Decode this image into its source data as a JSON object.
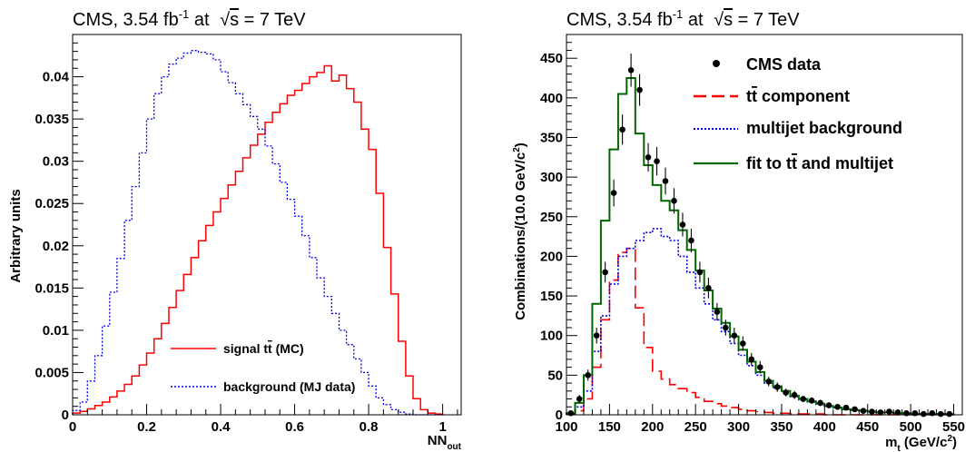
{
  "chart_data": [
    {
      "type": "line",
      "title": "CMS, 3.54 fb^-1 at √s = 7 TeV",
      "title_parts": {
        "pre": "CMS, 3.54 fb",
        "sup": "-1",
        "mid": " at ",
        "sqrt": "s",
        "post": " = 7 TeV"
      },
      "xlabel": "NN_out",
      "xlabel_parts": {
        "main": "NN",
        "sub": "out"
      },
      "ylabel": "Arbitrary units",
      "xlim": [
        0,
        1.05
      ],
      "ylim": [
        0,
        0.045
      ],
      "xticks": [
        "0",
        "0.2",
        "0.4",
        "0.6",
        "0.8",
        "1"
      ],
      "xtick_values": [
        0,
        0.2,
        0.4,
        0.6,
        0.8,
        1
      ],
      "yticks": [
        "0",
        "0.005",
        "0.01",
        "0.015",
        "0.02",
        "0.025",
        "0.03",
        "0.035",
        "0.04"
      ],
      "ytick_values": [
        0,
        0.005,
        0.01,
        0.015,
        0.02,
        0.025,
        0.03,
        0.035,
        0.04
      ],
      "bin_width": 0.02,
      "bins_start": 0,
      "legend_position": "bottom-center",
      "series": [
        {
          "name": "signal tt̄ (MC)",
          "label_parts": {
            "pre": "signal t",
            "bar": "t",
            "post": " (MC)"
          },
          "color": "#ff0000",
          "style": "solid",
          "values": [
            0.0002,
            0.0004,
            0.0007,
            0.0011,
            0.0015,
            0.0021,
            0.0028,
            0.0036,
            0.0046,
            0.0059,
            0.0073,
            0.009,
            0.0108,
            0.0127,
            0.0147,
            0.0166,
            0.0186,
            0.0206,
            0.0224,
            0.024,
            0.0256,
            0.0272,
            0.0288,
            0.0304,
            0.0319,
            0.0332,
            0.0346,
            0.0358,
            0.0368,
            0.0378,
            0.0384,
            0.0392,
            0.04,
            0.0405,
            0.0413,
            0.0395,
            0.0402,
            0.0386,
            0.037,
            0.0338,
            0.0314,
            0.0262,
            0.0198,
            0.0143,
            0.0087,
            0.0046,
            0.0019,
            0.0006,
            0.0002,
            0.0001
          ]
        },
        {
          "name": "background (MJ data)",
          "label_parts": {
            "pre": "background (MJ data)"
          },
          "color": "#0000ee",
          "style": "dotted",
          "values": [
            0.0005,
            0.0015,
            0.004,
            0.007,
            0.0105,
            0.0145,
            0.0185,
            0.023,
            0.027,
            0.031,
            0.035,
            0.038,
            0.04,
            0.0415,
            0.0422,
            0.0428,
            0.0431,
            0.0429,
            0.0427,
            0.042,
            0.0406,
            0.0393,
            0.038,
            0.0367,
            0.0353,
            0.0338,
            0.0318,
            0.0297,
            0.0275,
            0.0255,
            0.0235,
            0.0212,
            0.0186,
            0.0162,
            0.014,
            0.012,
            0.01,
            0.0083,
            0.0066,
            0.005,
            0.0034,
            0.002,
            0.0012,
            0.0006,
            0.0003,
            0.0001,
            0,
            0,
            0,
            0
          ]
        }
      ]
    },
    {
      "type": "line",
      "title": "CMS, 3.54 fb^-1 at √s = 7 TeV",
      "title_parts": {
        "pre": "CMS, 3.54 fb",
        "sup": "-1",
        "mid": " at ",
        "sqrt": "s",
        "post": " = 7 TeV"
      },
      "xlabel": "m_t (GeV/c^2)",
      "xlabel_parts": {
        "main": "m",
        "sub": "t",
        "mid": " (GeV/c",
        "sup": "2",
        "post": ")"
      },
      "ylabel": "Combinations/(10.0 GeV/c^2)",
      "ylabel_parts": {
        "pre": "Combinations/(10.0 GeV/c",
        "sup": "2",
        "post": ")"
      },
      "xlim": [
        100,
        560
      ],
      "ylim": [
        0,
        480
      ],
      "xticks": [
        "100",
        "150",
        "200",
        "250",
        "300",
        "350",
        "400",
        "450",
        "500",
        "550"
      ],
      "xtick_values": [
        100,
        150,
        200,
        250,
        300,
        350,
        400,
        450,
        500,
        550
      ],
      "yticks": [
        "0",
        "50",
        "100",
        "150",
        "200",
        "250",
        "300",
        "350",
        "400",
        "450"
      ],
      "ytick_values": [
        0,
        50,
        100,
        150,
        200,
        250,
        300,
        350,
        400,
        450
      ],
      "bin_width": 10,
      "bins_start": 100,
      "legend_position": "top-right",
      "series": [
        {
          "name": "CMS data",
          "label_parts": {
            "pre": "CMS data"
          },
          "kind": "points",
          "color": "#000000",
          "x": [
            105,
            115,
            125,
            135,
            145,
            155,
            165,
            175,
            185,
            195,
            205,
            215,
            225,
            235,
            245,
            255,
            265,
            275,
            285,
            295,
            305,
            315,
            325,
            335,
            345,
            355,
            365,
            375,
            385,
            395,
            405,
            415,
            425,
            435,
            445,
            455,
            465,
            475,
            485,
            495,
            505,
            515,
            525,
            535,
            545
          ],
          "values": [
            2,
            20,
            50,
            100,
            180,
            280,
            360,
            435,
            410,
            325,
            320,
            295,
            270,
            240,
            220,
            180,
            160,
            130,
            110,
            100,
            90,
            70,
            60,
            42,
            35,
            28,
            25,
            20,
            18,
            15,
            12,
            10,
            9,
            7,
            5,
            4,
            3,
            4,
            3,
            2,
            2,
            1,
            2,
            1,
            1
          ],
          "errors": [
            2,
            5,
            7,
            10,
            13,
            17,
            19,
            21,
            20,
            18,
            18,
            17,
            16,
            15,
            15,
            13,
            13,
            11,
            10,
            10,
            9,
            8,
            8,
            6,
            6,
            5,
            5,
            4,
            4,
            4,
            3,
            3,
            3,
            3,
            2,
            2,
            2,
            2,
            2,
            1,
            1,
            1,
            1,
            1,
            1
          ]
        },
        {
          "name": "tt̄ component",
          "label_parts": {
            "pre": "t",
            "bar": "t",
            "post": " component"
          },
          "kind": "step",
          "color": "#ff0000",
          "style": "dashed",
          "values": [
            1,
            5,
            20,
            60,
            120,
            170,
            205,
            210,
            135,
            85,
            55,
            45,
            38,
            33,
            28,
            22,
            17,
            14,
            11,
            9,
            7,
            5,
            4,
            3,
            2,
            2,
            1,
            1,
            1,
            1,
            0,
            0,
            0,
            0,
            0,
            0,
            0,
            0,
            0,
            0,
            0,
            0,
            0,
            0,
            0
          ]
        },
        {
          "name": "multijet background",
          "label_parts": {
            "pre": "multijet background"
          },
          "kind": "step",
          "color": "#0000ee",
          "style": "dotted",
          "values": [
            1,
            10,
            30,
            80,
            125,
            165,
            200,
            210,
            220,
            230,
            235,
            225,
            220,
            200,
            180,
            160,
            140,
            120,
            105,
            90,
            75,
            62,
            50,
            40,
            34,
            28,
            23,
            19,
            16,
            13,
            11,
            9,
            7,
            6,
            5,
            4,
            3,
            3,
            2,
            2,
            1,
            1,
            1,
            1,
            1
          ]
        },
        {
          "name": "fit to tt̄ and multijet",
          "label_parts": {
            "pre": "fit to t",
            "bar": "t",
            "post": " and multijet"
          },
          "kind": "step",
          "color": "#006600",
          "style": "solid",
          "values": [
            2,
            15,
            50,
            140,
            245,
            335,
            405,
            425,
            355,
            315,
            290,
            270,
            258,
            233,
            208,
            182,
            157,
            134,
            116,
            99,
            82,
            67,
            54,
            43,
            36,
            30,
            24,
            20,
            17,
            14,
            11,
            9,
            7,
            6,
            5,
            4,
            3,
            3,
            2,
            2,
            1,
            1,
            1,
            1,
            1
          ]
        }
      ]
    }
  ]
}
